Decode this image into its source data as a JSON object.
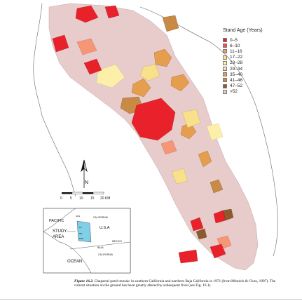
{
  "legend": {
    "title": "Stand Age (Years)",
    "items": [
      {
        "label": "0–5",
        "color": "#e8212b"
      },
      {
        "label": "6–10",
        "color": "#f0524a"
      },
      {
        "label": "11–16",
        "color": "#f59676"
      },
      {
        "label": "17–22",
        "color": "#f9e08a"
      },
      {
        "label": "23–28",
        "color": "#fcefa9"
      },
      {
        "label": "29–34",
        "color": "#f6dcc1"
      },
      {
        "label": "35–40",
        "color": "#e59d4e"
      },
      {
        "label": "41–46",
        "color": "#c98a45"
      },
      {
        "label": "47–52",
        "color": "#8c5a2b"
      },
      {
        "label": ">52",
        "color": "#e7cccb"
      }
    ]
  },
  "scale_bar": {
    "labels": [
      "0",
      "5",
      "10",
      "15",
      "20 KM"
    ]
  },
  "inset": {
    "labels": [
      "PACIFIC",
      "STUDY",
      "AREA",
      "OCEAN",
      "CALIFORNIA",
      "U.S.A",
      "MEXICO",
      "BAJA",
      "CALIFORNIA",
      "SAN",
      "LA",
      "SD",
      "ENS"
    ]
  },
  "caption": {
    "figure": "Figure 16.2.",
    "text": "Chaparral patch mosaic in southern California and northern Baja California in 1971 (from Minnich & Chou, 1997). The current situation on the ground has been greatly altered by subsequent fires (see Fig. 16.1)."
  },
  "colors": {
    "background": "#ffffff",
    "land_outline": "#555555",
    "nonchaparral": "#ffffff",
    "water": "#7fcfe6"
  }
}
